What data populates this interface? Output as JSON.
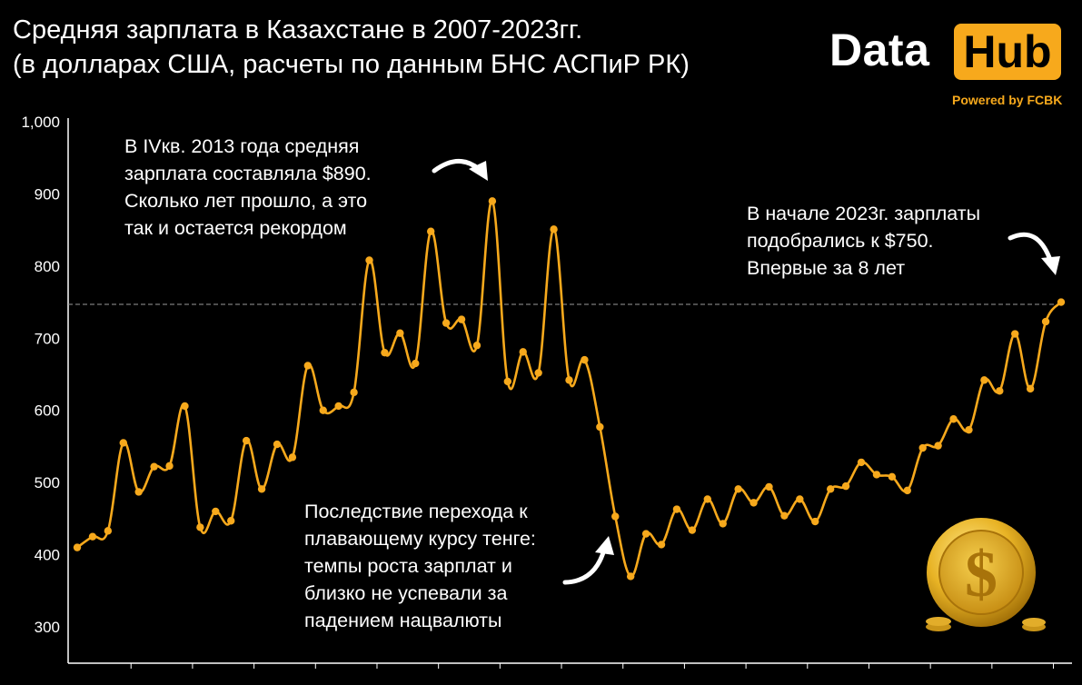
{
  "title": {
    "line1": "Средняя зарплата в Казахстане в 2007-2023гг.",
    "line2": "(в долларах США, расчеты по данным БНС АСПиР РК)"
  },
  "logo": {
    "data": "Data",
    "hub": "Hub",
    "powered": "Powered by FCBK"
  },
  "annotations": {
    "peak": [
      "В IVкв. 2013 года средняя",
      "зарплата составляла $890.",
      "Сколько лет прошло, а это",
      "так и остается рекордом"
    ],
    "recent": [
      "В начале 2023г. зарплаты",
      "подобрались к $750.",
      "Впервые за 8 лет"
    ],
    "devaluation": [
      "Последствие перехода к",
      "плавающему курсу тенге:",
      "темпы роста зарплат и",
      "близко не успевали за",
      "падением нацвалюты"
    ]
  },
  "colors": {
    "line": "#f7a91c",
    "background": "#000000",
    "text": "#ffffff",
    "reference_line": "#aaaaaa"
  },
  "icons": {
    "coin": "dollar-coin-icon",
    "arrows": "curved-arrow-icon"
  },
  "chart_data": {
    "type": "line",
    "title": "Средняя зарплата в Казахстане в 2007-2023гг.",
    "subtitle": "(в долларах США, расчеты по данным БНС АСПиР РК)",
    "xlabel": "",
    "ylabel": "",
    "ylim": [
      270,
      1000
    ],
    "yticks": [
      300,
      400,
      500,
      600,
      700,
      800,
      900,
      1000
    ],
    "ytick_labels": [
      "300",
      "400",
      "500",
      "600",
      "700",
      "800",
      "900",
      "1,000"
    ],
    "grid": false,
    "reference_line": {
      "y": 747,
      "style": "dashed"
    },
    "series": [
      {
        "values": [
          410,
          425,
          433,
          555,
          487,
          522,
          523,
          606,
          438,
          460,
          447,
          558,
          491,
          553,
          535,
          662,
          600,
          606,
          625,
          808,
          680,
          707,
          665,
          848,
          721,
          726,
          690,
          890,
          640,
          681,
          652,
          851,
          642,
          670,
          577,
          453,
          370,
          429,
          414,
          463,
          434,
          477,
          443,
          491,
          472,
          494,
          454,
          477,
          446,
          491,
          495,
          528,
          511,
          508,
          489,
          548,
          551,
          588,
          573,
          642,
          627,
          706,
          630,
          723,
          750
        ]
      }
    ]
  }
}
